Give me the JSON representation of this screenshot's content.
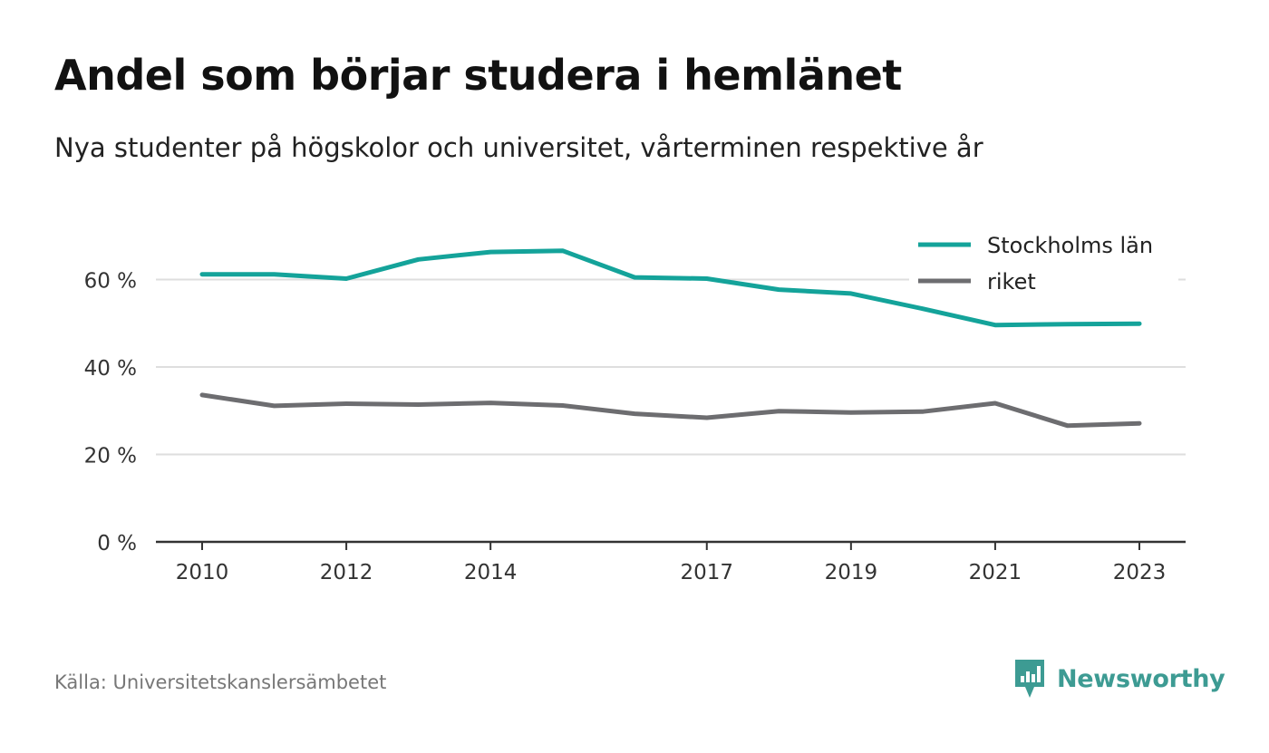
{
  "header": {
    "title": "Andel som börjar studera i hemlänet",
    "subtitle": "Nya studenter på högskolor och universitet, vårterminen respektive år"
  },
  "footer": {
    "source": "Källa: Universitetskanslersämbetet",
    "brand": "Newsworthy",
    "brand_color": "#3d9b93"
  },
  "chart_data": {
    "type": "line",
    "x": [
      2010,
      2011,
      2012,
      2013,
      2014,
      2015,
      2016,
      2017,
      2018,
      2019,
      2020,
      2021,
      2022,
      2023
    ],
    "x_tick_labels": [
      "2010",
      "2012",
      "2014",
      "2017",
      "2019",
      "2021",
      "2023"
    ],
    "y_ticks": [
      0,
      20,
      40,
      60
    ],
    "y_tick_labels": [
      "0 %",
      "20 %",
      "40 %",
      "60 %"
    ],
    "ylim": [
      0,
      70
    ],
    "grid": true,
    "legend_position": "top-right",
    "series": [
      {
        "name": "Stockholms län",
        "color": "#14a39a",
        "values": [
          61.2,
          61.2,
          60.2,
          64.6,
          66.3,
          66.6,
          60.5,
          60.2,
          57.7,
          56.8,
          53.3,
          49.6,
          49.8,
          49.9
        ]
      },
      {
        "name": "riket",
        "color": "#6d6d70",
        "values": [
          33.6,
          31.1,
          31.6,
          31.4,
          31.8,
          31.2,
          29.3,
          28.4,
          29.9,
          29.6,
          29.8,
          31.7,
          26.6,
          27.1
        ]
      }
    ]
  }
}
